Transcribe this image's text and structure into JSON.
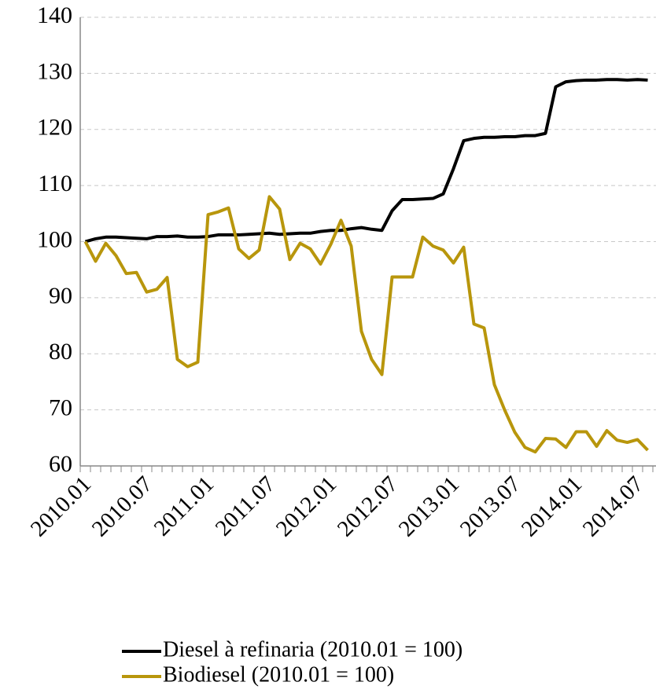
{
  "chart_data": {
    "type": "line",
    "categories": [
      "2010.01",
      null,
      null,
      null,
      null,
      null,
      "2010.07",
      null,
      null,
      null,
      null,
      null,
      "2011.01",
      null,
      null,
      null,
      null,
      null,
      "2011.07",
      null,
      null,
      null,
      null,
      null,
      "2012.01",
      null,
      null,
      null,
      null,
      null,
      "2012.07",
      null,
      null,
      null,
      null,
      null,
      "2013.01",
      null,
      null,
      null,
      null,
      null,
      "2013.07",
      null,
      null,
      null,
      null,
      null,
      "2014.01",
      null,
      null,
      null,
      null,
      null,
      "2014.07",
      null
    ],
    "series": [
      {
        "name": "Diesel à refinaria (2010.01 = 100)",
        "color": "#000000",
        "values": [
          100,
          100.5,
          100.8,
          100.8,
          100.7,
          100.6,
          100.5,
          100.9,
          100.9,
          101,
          100.8,
          100.8,
          100.9,
          101.2,
          101.2,
          101.2,
          101.3,
          101.4,
          101.5,
          101.3,
          101.4,
          101.5,
          101.5,
          101.8,
          102,
          102,
          102.3,
          102.5,
          102.2,
          102,
          105.5,
          107.5,
          107.5,
          107.6,
          107.7,
          108.5,
          113,
          118,
          118.4,
          118.6,
          118.6,
          118.7,
          118.7,
          118.9,
          118.9,
          119.3,
          127.6,
          128.5,
          128.7,
          128.8,
          128.8,
          128.9,
          128.9,
          128.8,
          128.9,
          128.8
        ]
      },
      {
        "name": "Biodiesel (2010.01 = 100)",
        "color": "#b8960c",
        "values": [
          100,
          96.5,
          99.7,
          97.5,
          94.3,
          94.5,
          91,
          91.5,
          93.6,
          79,
          77.7,
          78.5,
          104.8,
          105.3,
          106,
          98.7,
          97,
          98.5,
          108,
          105.8,
          96.8,
          99.7,
          98.7,
          96,
          99.5,
          103.8,
          99.2,
          84,
          79,
          76.3,
          93.7,
          93.7,
          93.7,
          100.8,
          99.2,
          98.5,
          96.2,
          99,
          85.3,
          84.6,
          74.5,
          70,
          66,
          63.3,
          62.5,
          64.9,
          64.8,
          63.3,
          66.1,
          66.1,
          63.5,
          66.3,
          64.6,
          64.2,
          64.7,
          62.8
        ]
      }
    ],
    "ylim": [
      60,
      140
    ],
    "yticks": [
      60,
      70,
      80,
      90,
      100,
      110,
      120,
      130,
      140
    ],
    "grid": true
  }
}
